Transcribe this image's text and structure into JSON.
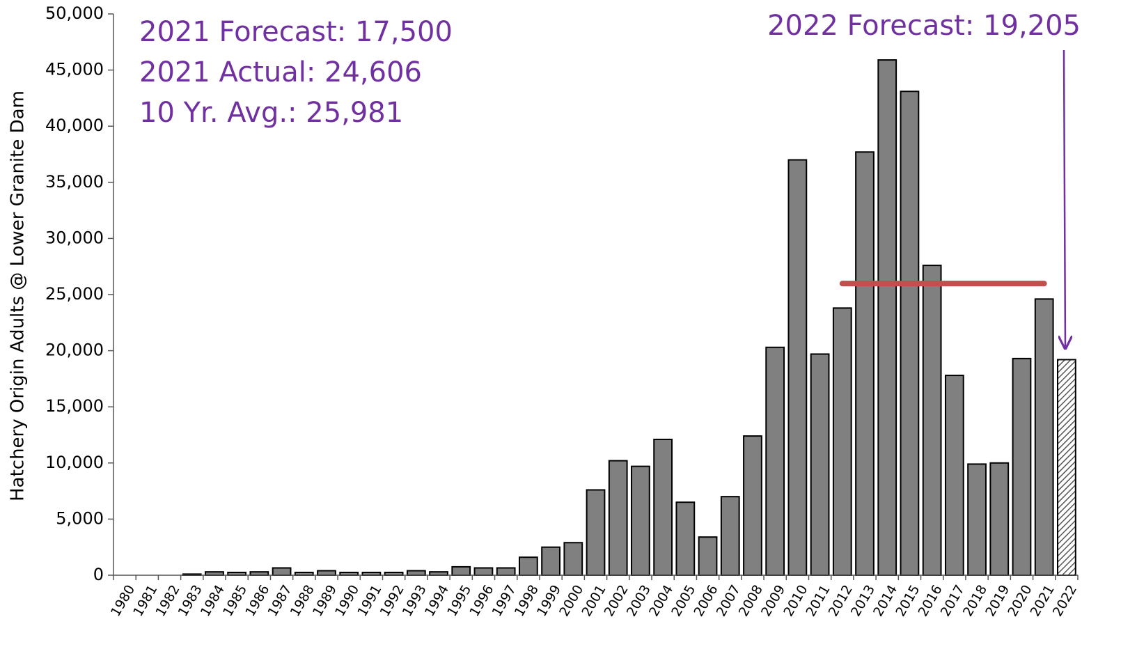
{
  "chart_data": {
    "type": "bar",
    "y_axis_label": "Hatchery Origin Adults @ Lower Granite Dam",
    "categories": [
      "1980",
      "1981",
      "1982",
      "1983",
      "1984",
      "1985",
      "1986",
      "1987",
      "1988",
      "1989",
      "1990",
      "1991",
      "1992",
      "1993",
      "1994",
      "1995",
      "1996",
      "1997",
      "1998",
      "1999",
      "2000",
      "2001",
      "2002",
      "2003",
      "2004",
      "2005",
      "2006",
      "2007",
      "2008",
      "2009",
      "2010",
      "2011",
      "2012",
      "2013",
      "2014",
      "2015",
      "2016",
      "2017",
      "2018",
      "2019",
      "2020",
      "2021",
      "2022"
    ],
    "values": [
      0,
      0,
      0,
      100,
      300,
      250,
      300,
      650,
      250,
      400,
      250,
      250,
      250,
      400,
      300,
      750,
      650,
      650,
      1600,
      2500,
      2900,
      7600,
      10200,
      9700,
      12100,
      6500,
      3400,
      7000,
      12400,
      20300,
      37000,
      19700,
      23800,
      37700,
      45900,
      43100,
      27600,
      17800,
      9900,
      10000,
      19300,
      24606,
      19205
    ],
    "color": "#808080",
    "hatched_categories": [
      "2022"
    ],
    "ylim": [
      0,
      50000
    ],
    "yticks": [
      0,
      {
        "value": 5000,
        "label": "5,000"
      },
      {
        "value": 10000,
        "label": "10,000"
      },
      {
        "value": 15000,
        "label": "15,000"
      },
      {
        "value": 20000,
        "label": "20,000"
      },
      {
        "value": 25000,
        "label": "25,000"
      },
      {
        "value": 30000,
        "label": "30,000"
      },
      {
        "value": 35000,
        "label": "35,000"
      },
      {
        "value": 40000,
        "label": "40,000"
      },
      {
        "value": 45000,
        "label": "45,000"
      },
      {
        "value": 50000,
        "label": "50,000"
      }
    ],
    "average_line": {
      "value": 25981,
      "from": "2012",
      "to": "2021",
      "color": "#c0504d"
    },
    "annotations": [
      "2021 Forecast: 17,500",
      "2021 Actual: 24,606",
      "10 Yr. Avg.: 25,981",
      "2022 Forecast: 19,205"
    ]
  }
}
